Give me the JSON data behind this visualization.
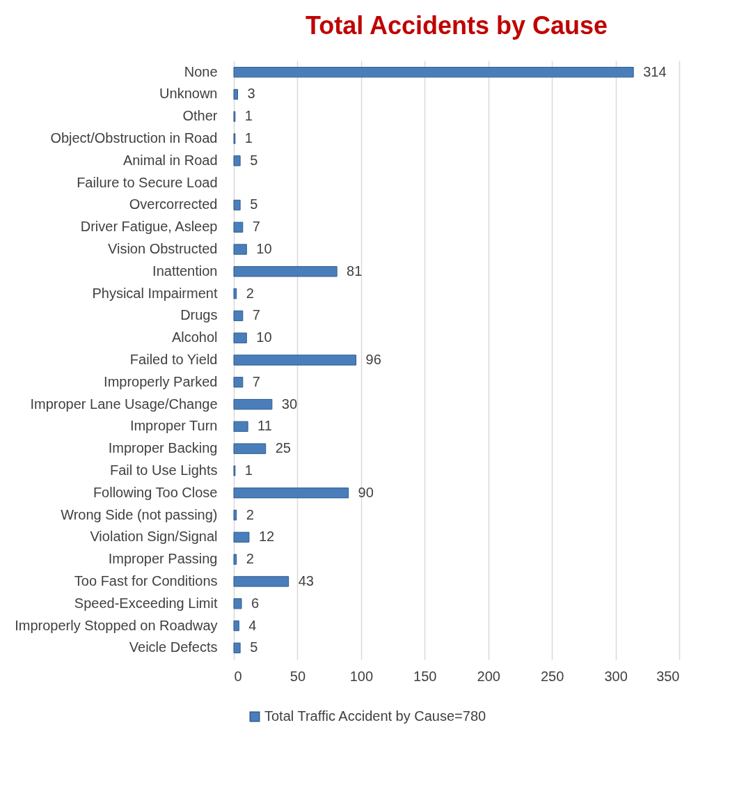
{
  "chart_data": {
    "type": "bar",
    "orientation": "horizontal",
    "title": "Total Accidents by Cause",
    "categories": [
      "None",
      "Unknown",
      "Other",
      "Object/Obstruction in Road",
      "Animal in Road",
      "Failure to Secure Load",
      "Overcorrected",
      "Driver Fatigue, Asleep",
      "Vision Obstructed",
      "Inattention",
      "Physical Impairment",
      "Drugs",
      "Alcohol",
      "Failed to Yield",
      "Improperly Parked",
      "Improper Lane Usage/Change",
      "Improper Turn",
      "Improper Backing",
      "Fail to Use Lights",
      "Following Too Close",
      "Wrong Side (not passing)",
      "Violation Sign/Signal",
      "Improper Passing",
      "Too Fast for Conditions",
      "Speed-Exceeding Limit",
      "Improperly Stopped on Roadway",
      "Veicle Defects"
    ],
    "series": [
      {
        "name": "Total Traffic Accident by Cause=780",
        "color": "#4a7ebb",
        "values": [
          314,
          3,
          1,
          1,
          5,
          null,
          5,
          7,
          10,
          81,
          2,
          7,
          10,
          96,
          7,
          30,
          11,
          25,
          1,
          90,
          2,
          12,
          2,
          43,
          6,
          4,
          5
        ],
        "value_labels": [
          "314",
          "3",
          "1",
          "1",
          "5",
          null,
          "5",
          "7",
          "10",
          "81",
          "2",
          "7",
          "10",
          "96",
          "7",
          "30",
          "11",
          "25",
          "1",
          "90",
          "2",
          "12",
          "2",
          "43",
          "6",
          "4",
          "5"
        ]
      }
    ],
    "xlim": [
      0,
      350
    ],
    "xticks": [
      0,
      50,
      100,
      150,
      200,
      250,
      300,
      350
    ],
    "grid": "x",
    "legend": "bottom"
  }
}
